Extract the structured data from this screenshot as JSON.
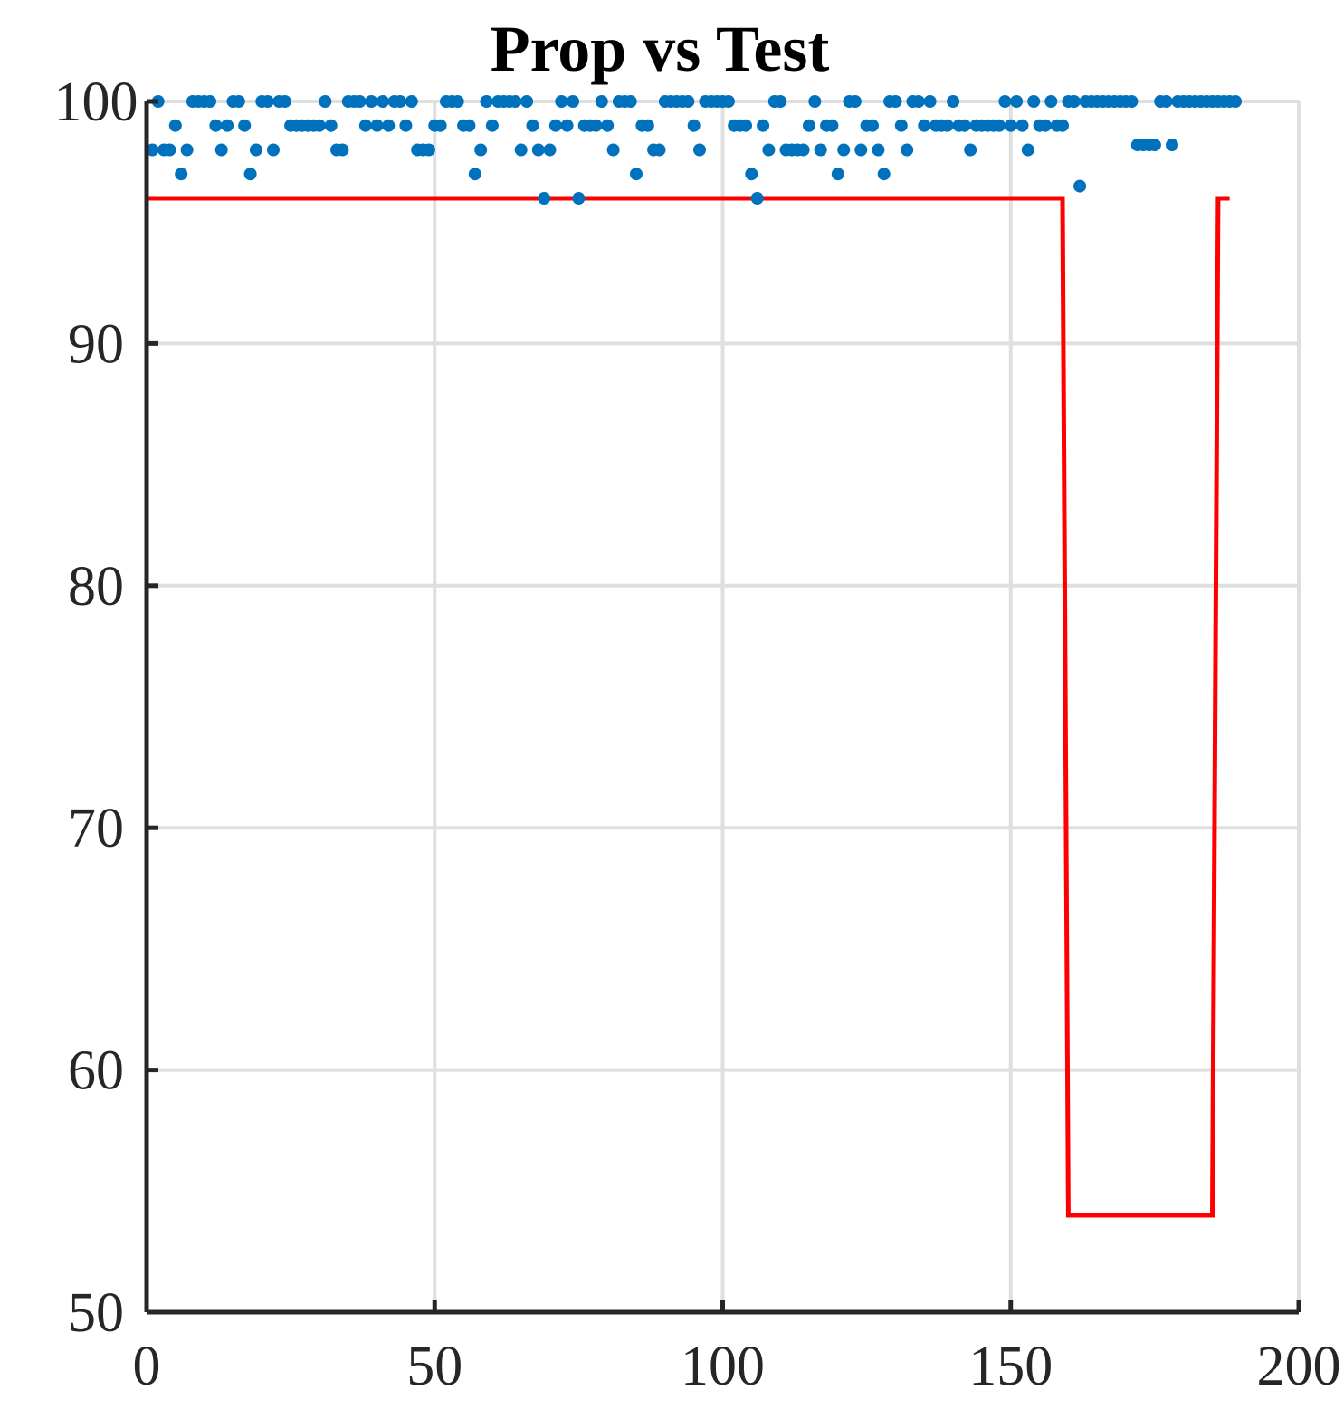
{
  "chart_data": {
    "type": "scatter",
    "title": "Prop vs Test",
    "xlabel": "",
    "ylabel": "",
    "xlim": [
      0,
      200
    ],
    "ylim": [
      50,
      100
    ],
    "xticks": [
      0,
      50,
      100,
      150,
      200
    ],
    "yticks": [
      50,
      60,
      70,
      80,
      90,
      100
    ],
    "grid": true,
    "legend": "none",
    "colors": {
      "scatter": "#0072bd",
      "line": "#ff0000"
    },
    "series": [
      {
        "type": "scatter",
        "x": [
          1,
          2,
          3,
          4,
          5,
          6,
          7,
          8,
          9,
          10,
          11,
          12,
          13,
          14,
          15,
          16,
          17,
          18,
          19,
          20,
          21,
          22,
          23,
          24,
          25,
          26,
          27,
          28,
          29,
          30,
          31,
          32,
          33,
          34,
          35,
          36,
          37,
          38,
          39,
          40,
          41,
          42,
          43,
          44,
          45,
          46,
          47,
          48,
          49,
          50,
          51,
          52,
          53,
          54,
          55,
          56,
          57,
          58,
          59,
          60,
          61,
          62,
          63,
          64,
          65,
          66,
          67,
          68,
          69,
          70,
          71,
          72,
          73,
          74,
          75,
          76,
          77,
          78,
          79,
          80,
          81,
          82,
          83,
          84,
          85,
          86,
          87,
          88,
          89,
          90,
          91,
          92,
          93,
          94,
          95,
          96,
          97,
          98,
          99,
          100,
          101,
          102,
          103,
          104,
          105,
          106,
          107,
          108,
          109,
          110,
          111,
          112,
          113,
          114,
          115,
          116,
          117,
          118,
          119,
          120,
          121,
          122,
          123,
          124,
          125,
          126,
          127,
          128,
          129,
          130,
          131,
          132,
          133,
          134,
          135,
          136,
          137,
          138,
          139,
          140,
          141,
          142,
          143,
          144,
          145,
          146,
          147,
          148,
          149,
          150,
          151,
          152,
          153,
          154,
          155,
          156,
          157,
          158,
          159,
          160,
          161,
          162,
          163,
          164,
          165,
          166,
          167,
          168,
          169,
          170,
          171,
          172,
          173,
          174,
          175,
          176,
          177,
          178,
          179,
          180,
          181,
          182,
          183,
          184,
          185,
          186,
          187,
          188,
          189
        ],
        "y": [
          98,
          100,
          98,
          98,
          99,
          97,
          98,
          100,
          100,
          100,
          100,
          99,
          98,
          99,
          100,
          100,
          99,
          97,
          98,
          100,
          100,
          98,
          100,
          100,
          99,
          99,
          99,
          99,
          99,
          99,
          100,
          99,
          98,
          98,
          100,
          100,
          100,
          99,
          100,
          99,
          100,
          99,
          100,
          100,
          99,
          100,
          98,
          98,
          98,
          99,
          99,
          100,
          100,
          100,
          99,
          99,
          97,
          98,
          100,
          99,
          100,
          100,
          100,
          100,
          98,
          100,
          99,
          98,
          96,
          98,
          99,
          100,
          99,
          100,
          96,
          99,
          99,
          99,
          100,
          99,
          98,
          100,
          100,
          100,
          97,
          99,
          99,
          98,
          98,
          100,
          100,
          100,
          100,
          100,
          99,
          98,
          100,
          100,
          100,
          100,
          100,
          99,
          99,
          99,
          97,
          96,
          99,
          98,
          100,
          100,
          98,
          98,
          98,
          98,
          99,
          100,
          98,
          99,
          99,
          97,
          98,
          100,
          100,
          98,
          99,
          99,
          98,
          97,
          100,
          100,
          99,
          98,
          100,
          100,
          99,
          100,
          99,
          99,
          99,
          100,
          99,
          99,
          98,
          99,
          99,
          99,
          99,
          99,
          100,
          99,
          100,
          99,
          98,
          100,
          99,
          99,
          100,
          99,
          99,
          100,
          100,
          96.5,
          100,
          100,
          100,
          100,
          100,
          100,
          100,
          100,
          100,
          98.2,
          98.2,
          98.2,
          98.2,
          100,
          100,
          98.2,
          100,
          100,
          100,
          100,
          100,
          100,
          100,
          100,
          100,
          100,
          100
        ]
      },
      {
        "type": "line",
        "x": [
          0,
          159,
          160,
          185,
          186,
          188
        ],
        "y": [
          96,
          96,
          54,
          54,
          96,
          96
        ]
      }
    ]
  }
}
